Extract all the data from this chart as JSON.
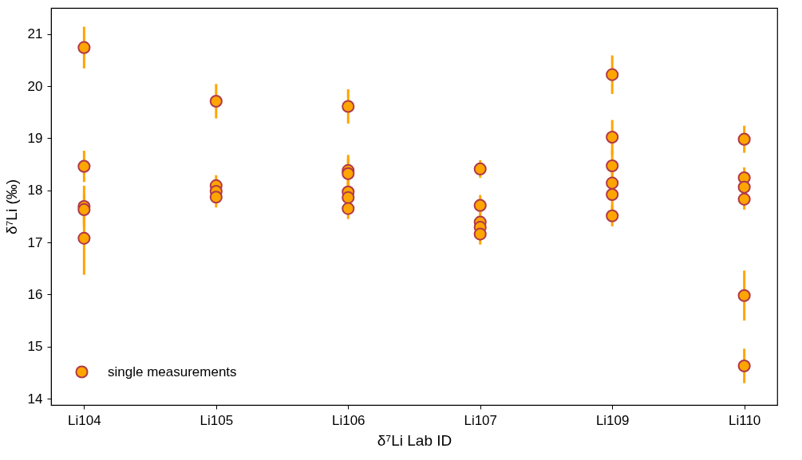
{
  "chart_data": {
    "type": "scatter",
    "xlabel": "δ⁷Li Lab ID",
    "ylabel": "δ⁷Li (‰)",
    "categories": [
      "Li104",
      "Li105",
      "Li106",
      "Li107",
      "Li109",
      "Li110"
    ],
    "series": [
      {
        "name": "single measurements",
        "color": "#ffa500",
        "x": [
          "Li104",
          "Li104",
          "Li104",
          "Li104",
          "Li104",
          "Li105",
          "Li105",
          "Li105",
          "Li105",
          "Li106",
          "Li106",
          "Li106",
          "Li106",
          "Li106",
          "Li106",
          "Li107",
          "Li107",
          "Li107",
          "Li107",
          "Li107",
          "Li109",
          "Li109",
          "Li109",
          "Li109",
          "Li109",
          "Li109",
          "Li110",
          "Li110",
          "Li110",
          "Li110",
          "Li110",
          "Li110"
        ],
        "values": [
          20.74,
          18.46,
          17.69,
          17.63,
          17.08,
          19.71,
          18.09,
          17.98,
          17.87,
          19.61,
          18.38,
          18.32,
          17.97,
          17.86,
          17.65,
          18.41,
          17.71,
          17.39,
          17.29,
          17.16,
          20.22,
          19.02,
          18.47,
          18.14,
          17.92,
          17.51,
          18.98,
          18.24,
          18.06,
          17.83,
          15.98,
          14.63
        ],
        "errors": [
          0.4,
          0.3,
          0.4,
          0.3,
          0.7,
          0.33,
          0.2,
          0.2,
          0.2,
          0.33,
          0.3,
          0.3,
          0.3,
          0.3,
          0.2,
          0.17,
          0.2,
          0.2,
          0.2,
          0.2,
          0.37,
          0.33,
          0.3,
          0.3,
          0.3,
          0.2,
          0.26,
          0.2,
          0.2,
          0.2,
          0.48,
          0.33
        ]
      }
    ],
    "ylim": [
      13.88,
      21.5
    ],
    "yticks": [
      14,
      15,
      16,
      17,
      18,
      19,
      20,
      21
    ],
    "marker": "circle",
    "legend": "bottom left",
    "grid": false
  }
}
